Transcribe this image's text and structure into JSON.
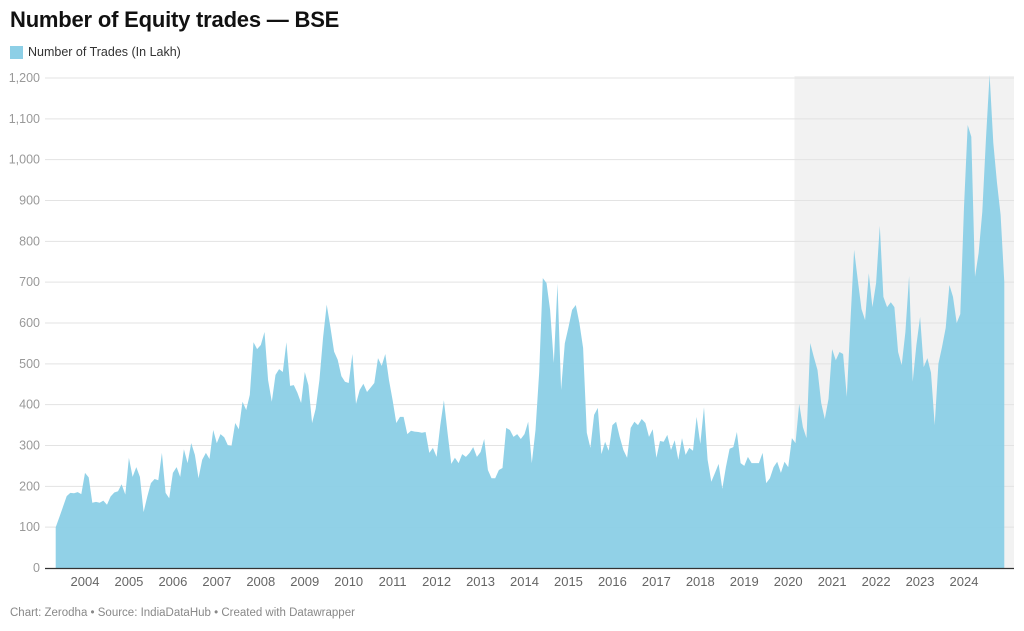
{
  "chart_data": {
    "type": "area",
    "title": "Number of Equity trades — BSE",
    "legend": {
      "placement": "top-left",
      "entries": [
        "Number of Trades (In Lakh)"
      ]
    },
    "xlabel": "",
    "ylabel": "",
    "ylim": [
      0,
      1200
    ],
    "yticks": [
      0,
      100,
      200,
      300,
      400,
      500,
      600,
      700,
      800,
      900,
      1000,
      1100,
      1200
    ],
    "ytick_labels": [
      "0",
      "100",
      "200",
      "300",
      "400",
      "500",
      "600",
      "700",
      "800",
      "900",
      "1,000",
      "1,100",
      "1,200"
    ],
    "xtick_labels": [
      "2004",
      "2005",
      "2006",
      "2007",
      "2008",
      "2009",
      "2010",
      "2011",
      "2012",
      "2013",
      "2014",
      "2015",
      "2016",
      "2017",
      "2018",
      "2019",
      "2020",
      "2021",
      "2022",
      "2023",
      "2024"
    ],
    "grid": "horizontal",
    "highlight_range": {
      "from": "2020-03",
      "to": "2024-12",
      "color": "#f2f2f2"
    },
    "series": [
      {
        "name": "Number of Trades (In Lakh)",
        "color": "#8dcfe6",
        "frequency": "monthly",
        "values_by_year": {
          "2003": [
            null,
            null,
            null,
            null,
            100,
            125,
            150,
            176,
            184,
            183,
            186,
            181
          ],
          "2004": [
            233,
            222,
            160,
            162,
            160,
            165,
            155,
            175,
            185,
            188,
            205,
            180
          ],
          "2005": [
            270,
            223,
            247,
            223,
            137,
            175,
            208,
            218,
            215,
            282,
            184,
            171
          ],
          "2006": [
            233,
            247,
            223,
            291,
            257,
            306,
            277,
            220,
            265,
            282,
            267,
            338
          ],
          "2007": [
            306,
            328,
            320,
            301,
            299,
            355,
            340,
            407,
            387,
            424,
            553,
            536
          ],
          "2008": [
            546,
            578,
            460,
            407,
            473,
            487,
            480,
            553,
            446,
            448,
            429,
            404
          ],
          "2009": [
            480,
            448,
            355,
            390,
            460,
            565,
            645,
            590,
            530,
            510,
            470,
            456
          ],
          "2010": [
            453,
            524,
            402,
            436,
            451,
            431,
            442,
            453,
            514,
            495,
            524,
            460
          ],
          "2011": [
            410,
            355,
            370,
            370,
            328,
            336,
            334,
            333,
            331,
            333,
            282,
            294
          ],
          "2012": [
            272,
            350,
            411,
            330,
            255,
            270,
            257,
            279,
            272,
            282,
            296,
            272
          ],
          "2013": [
            284,
            316,
            240,
            220,
            220,
            240,
            245,
            343,
            338,
            321,
            328,
            316
          ],
          "2014": [
            328,
            358,
            257,
            338,
            480,
            710,
            698,
            632,
            502,
            696,
            436,
            550
          ],
          "2015": [
            590,
            632,
            644,
            600,
            539,
            331,
            294,
            375,
            392,
            279,
            309,
            287
          ],
          "2016": [
            350,
            358,
            321,
            289,
            270,
            343,
            358,
            350,
            365,
            355,
            321,
            340
          ],
          "2017": [
            270,
            311,
            309,
            326,
            289,
            313,
            265,
            318,
            277,
            294,
            287,
            370
          ],
          "2018": [
            304,
            394,
            265,
            211,
            233,
            255,
            194,
            247,
            292,
            296,
            333,
            257
          ],
          "2019": [
            250,
            272,
            257,
            257,
            257,
            282,
            208,
            220,
            247,
            260,
            233,
            260
          ],
          "2020": [
            247,
            318,
            306,
            402,
            345,
            318,
            551,
            517,
            485,
            404,
            365,
            414
          ],
          "2021": [
            536,
            509,
            529,
            524,
            419,
            607,
            779,
            705,
            634,
            607,
            722,
            639
          ],
          "2022": [
            698,
            838,
            664,
            639,
            651,
            639,
            529,
            497,
            578,
            715,
            456,
            546
          ],
          "2023": [
            615,
            492,
            514,
            478,
            350,
            500,
            541,
            588,
            693,
            664,
            600,
            622
          ],
          "2024": [
            884,
            1085,
            1056,
            713,
            771,
            872,
            1053,
            1208,
            1041,
            943,
            865,
            700
          ]
        }
      }
    ]
  },
  "footer": "Chart: Zerodha • Source: IndiaDataHub • Created with Datawrapper"
}
